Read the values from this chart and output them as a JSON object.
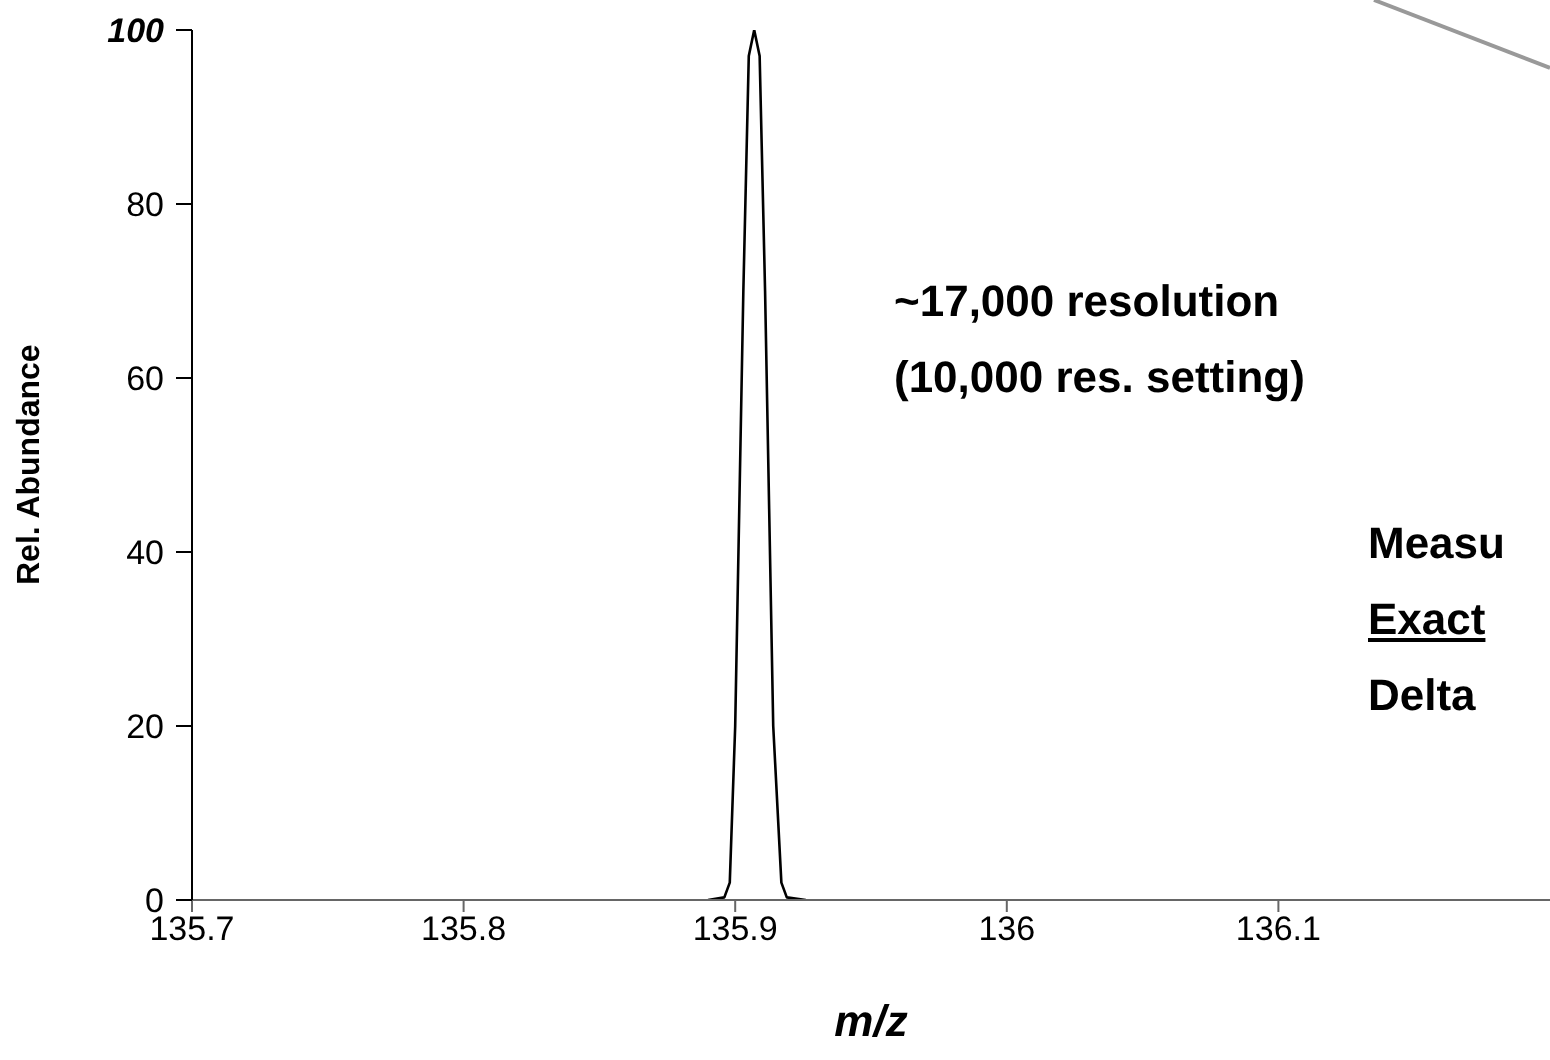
{
  "chart_data": {
    "type": "line",
    "xlabel": "m/z",
    "ylabel": "Rel. Abundance",
    "x": [
      135.89,
      135.896,
      135.898,
      135.9,
      135.903,
      135.905,
      135.907,
      135.909,
      135.911,
      135.914,
      135.917,
      135.919,
      135.926
    ],
    "series": [
      {
        "color": "#000000",
        "values": [
          0,
          0.3,
          2,
          20,
          70,
          97,
          100,
          97,
          70,
          20,
          2,
          0.3,
          0
        ]
      }
    ],
    "xlim": [
      135.7,
      136.2
    ],
    "xticks": [
      135.7,
      135.8,
      135.9,
      136,
      136.1
    ],
    "ylim": [
      0,
      100
    ],
    "yticks": [
      0,
      20,
      40,
      60,
      80,
      100
    ],
    "grid": false,
    "legend": false,
    "marker": "none",
    "line_style": "solid",
    "annotations": [
      "~17,000 resolution",
      "(10,000 res. setting)",
      "Measu",
      "Exact",
      "Delta"
    ]
  }
}
